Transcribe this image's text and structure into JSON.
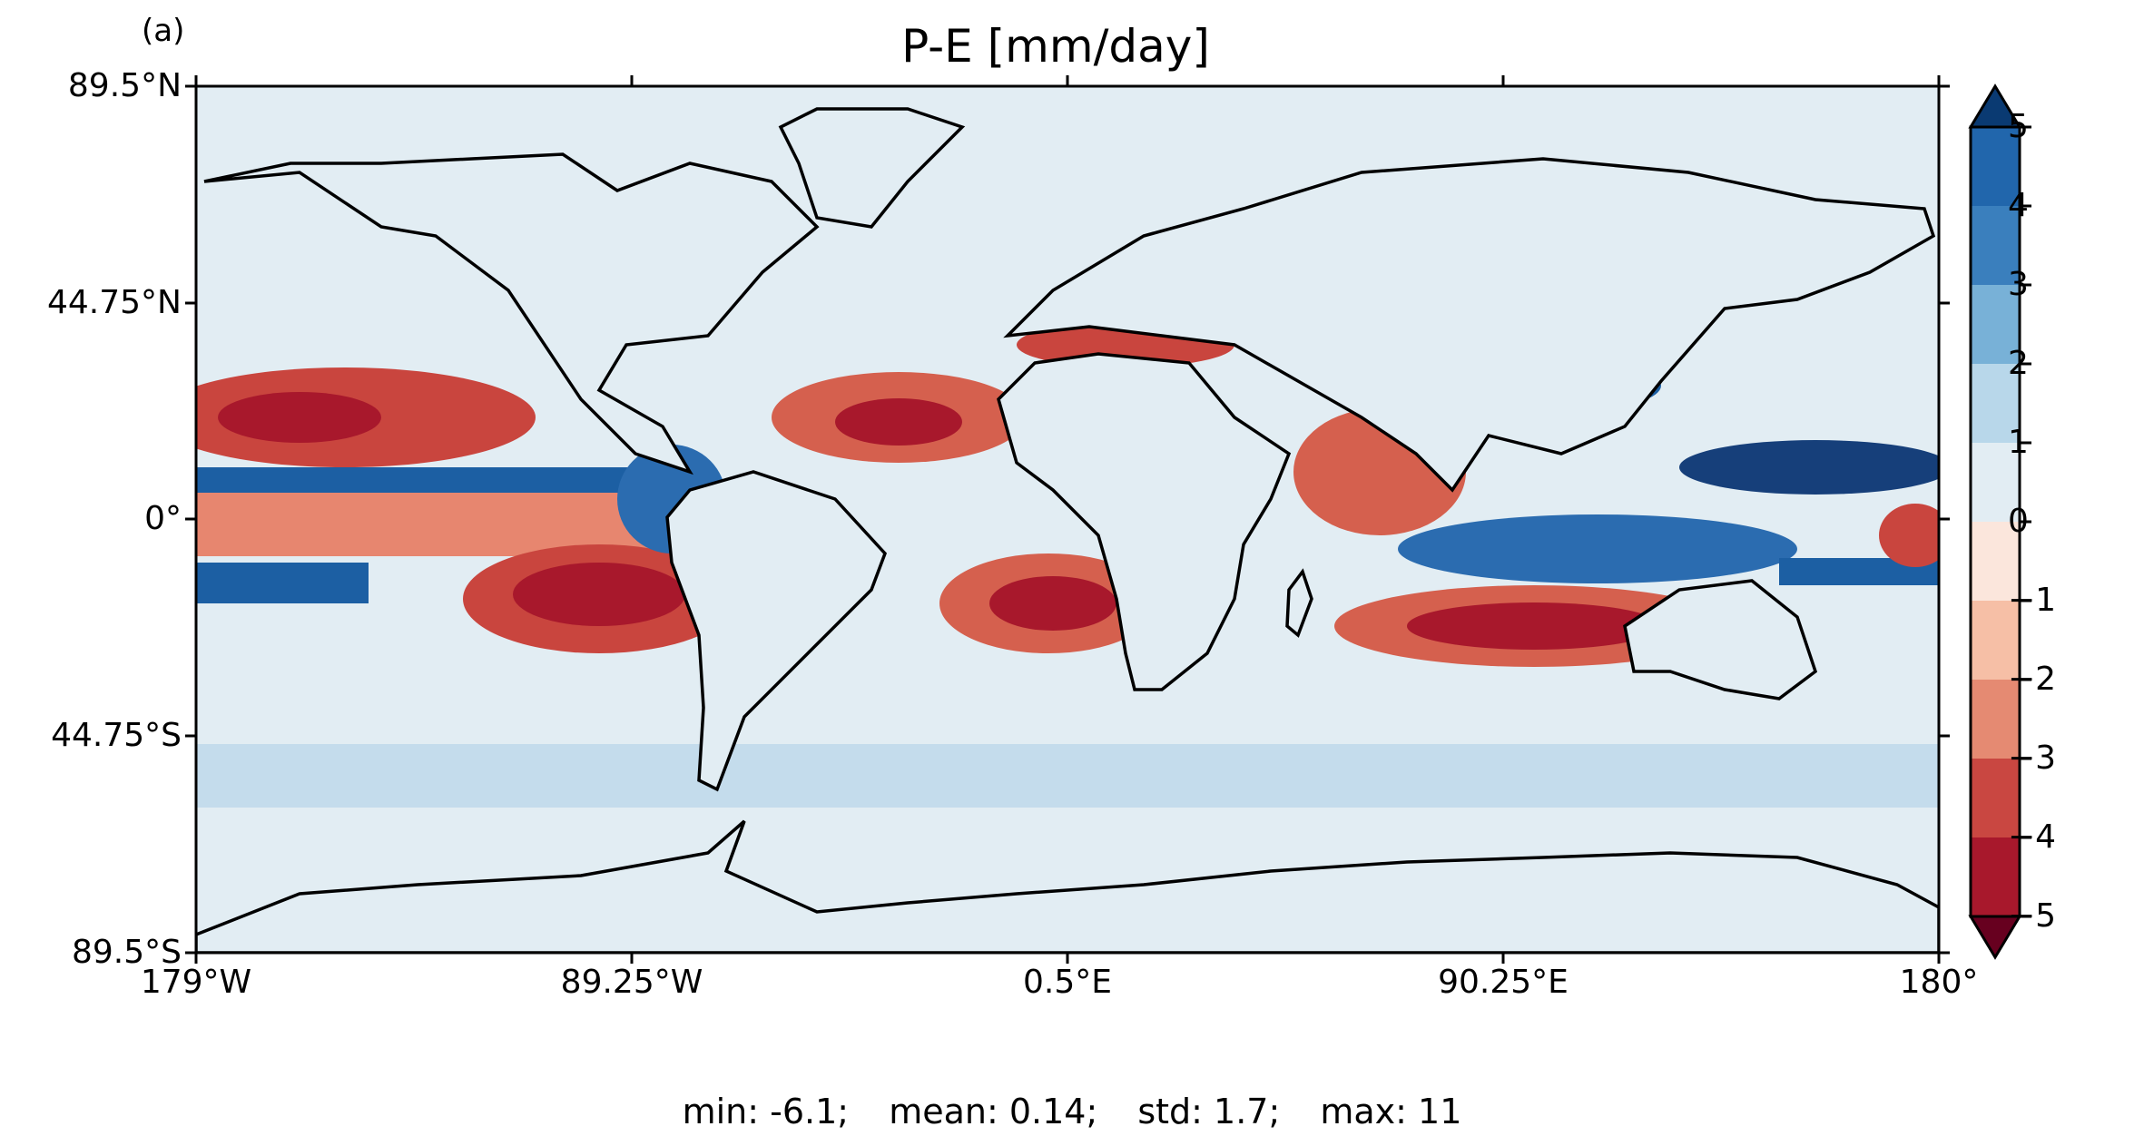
{
  "panel_label": "(a)",
  "title": "P-E [mm/day]",
  "axes": {
    "y_ticks": [
      "89.5°N",
      "44.75°N",
      "0°",
      "44.75°S",
      "89.5°S"
    ],
    "x_ticks": [
      "179°W",
      "89.25°W",
      "0.5°E",
      "90.25°E",
      "180°"
    ]
  },
  "colorbar": {
    "ticks": [
      "5",
      "4",
      "3",
      "2",
      "1",
      "0",
      "−1",
      "−2",
      "−3",
      "−4",
      "−5"
    ],
    "colors": [
      "#67001f",
      "#b2182b",
      "#d6604d",
      "#f4a582",
      "#fddbc7",
      "#f7f7f7",
      "#d1e5f0",
      "#92c5de",
      "#4393c3",
      "#2166ac",
      "#053061"
    ],
    "extend": "both"
  },
  "stats": {
    "min": "min: -6.1;",
    "mean": "mean: 0.14;",
    "std": "std: 1.7;",
    "max": "max: 11"
  },
  "chart_data": {
    "type": "heatmap",
    "title": "P-E [mm/day]",
    "xlim": [
      -179,
      180
    ],
    "ylim": [
      -89.5,
      89.5
    ],
    "x_ticks": [
      -179,
      -89.25,
      0.5,
      90.25,
      180
    ],
    "y_ticks": [
      89.5,
      44.75,
      0,
      -44.75,
      -89.5
    ],
    "color_levels": [
      -5,
      -4,
      -3,
      -2,
      -1,
      0,
      1,
      2,
      3,
      4,
      5
    ],
    "colormap": "RdBu",
    "stats": {
      "min": -6.1,
      "mean": 0.14,
      "std": 1.7,
      "max": 11
    }
  }
}
